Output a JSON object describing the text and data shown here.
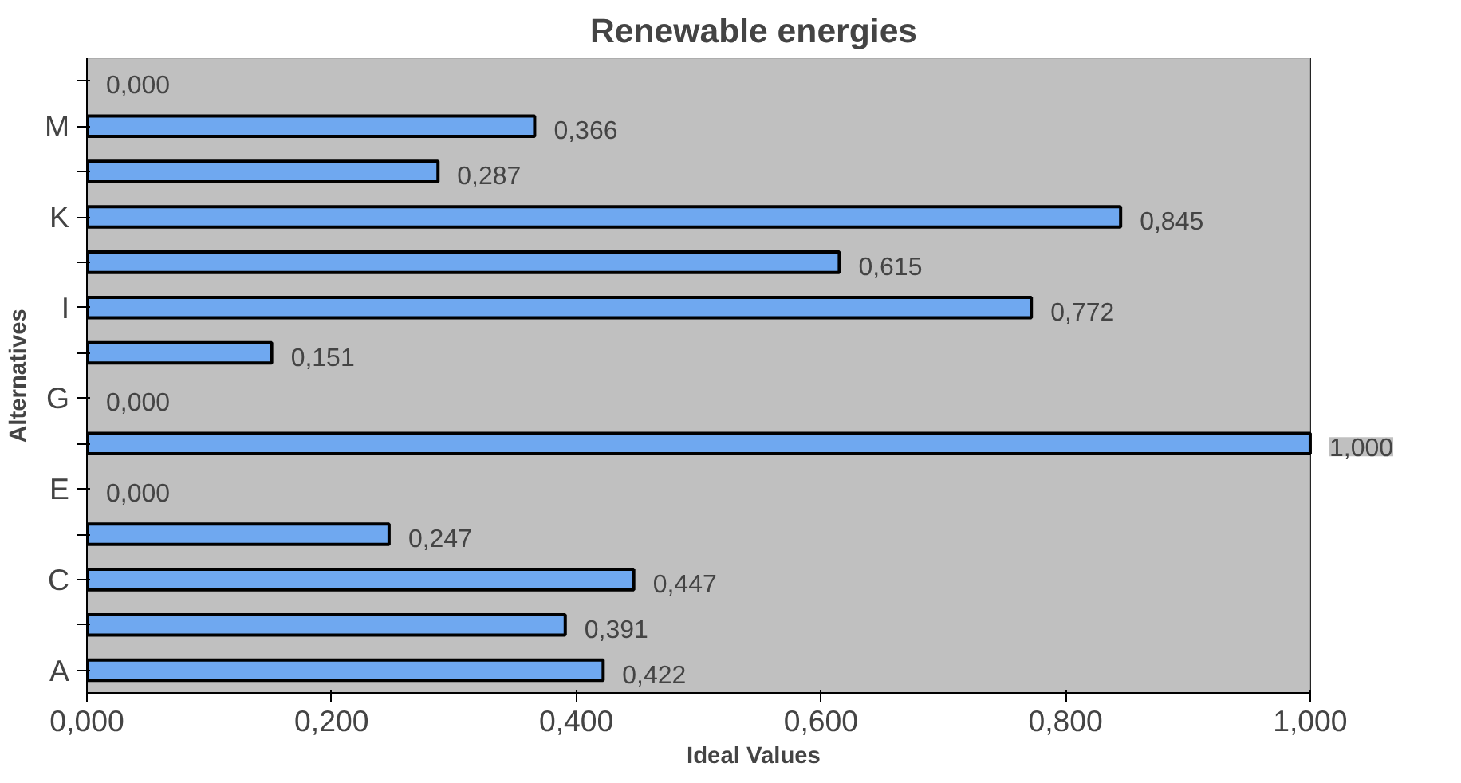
{
  "chart_data": {
    "type": "bar",
    "orientation": "horizontal",
    "title": "Renewable energies",
    "xlabel": "Ideal Values",
    "ylabel": "Alternatives",
    "categories": [
      null,
      "M",
      null,
      "K",
      null,
      "I",
      null,
      "G",
      null,
      "E",
      null,
      "C",
      null,
      "A"
    ],
    "values": [
      0.0,
      0.366,
      0.287,
      0.845,
      0.615,
      0.772,
      0.151,
      0.0,
      1.0,
      0.0,
      0.247,
      0.447,
      0.391,
      0.422
    ],
    "value_labels": [
      "0,000",
      "0,366",
      "0,287",
      "0,845",
      "0,615",
      "0,772",
      "0,151",
      "0,000",
      "1,000",
      "0,000",
      "0,247",
      "0,447",
      "0,391",
      "0,422"
    ],
    "color": "#6fa8f0",
    "xlim": [
      0,
      1
    ],
    "xticks": [
      {
        "value": 0,
        "label": "0,000"
      },
      {
        "value": 0.2,
        "label": "0,200"
      },
      {
        "value": 0.4,
        "label": "0,400"
      },
      {
        "value": 0.6,
        "label": "0,600"
      },
      {
        "value": 0.8,
        "label": "0,800"
      },
      {
        "value": 1,
        "label": "1,000"
      }
    ],
    "grid": "x"
  }
}
